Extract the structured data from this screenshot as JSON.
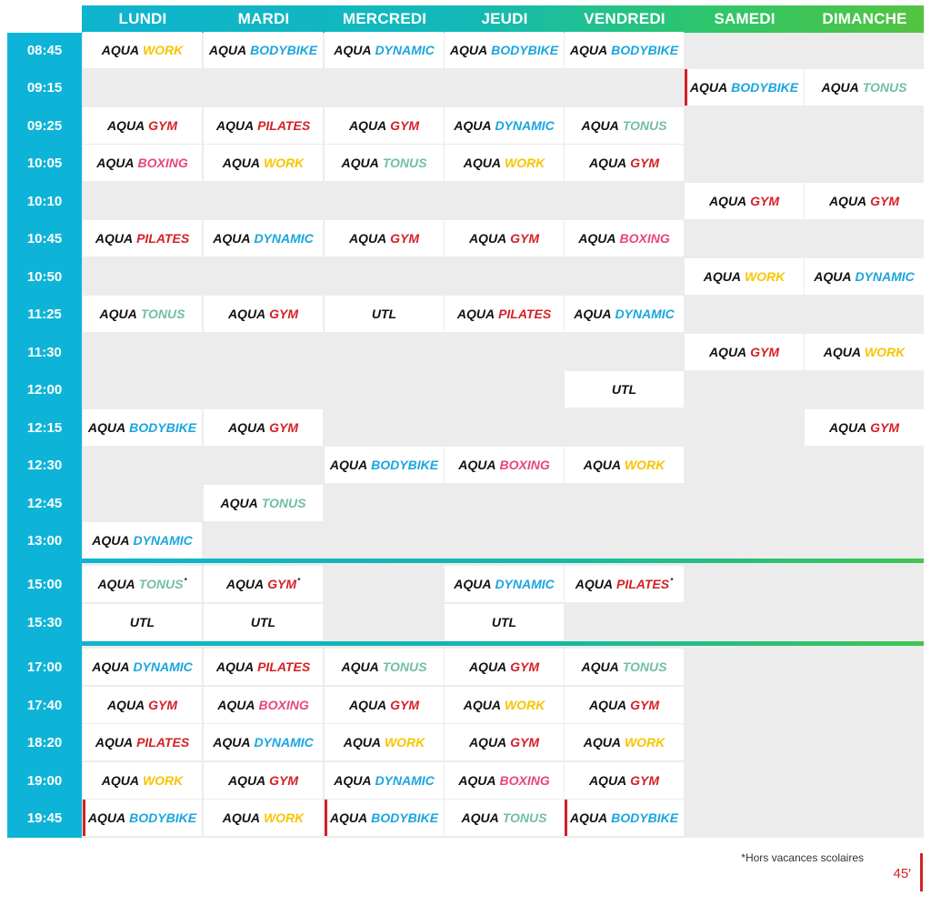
{
  "days": [
    "LUNDI",
    "MARDI",
    "MERCREDI",
    "JEUDI",
    "VENDREDI",
    "SAMEDI",
    "DIMANCHE"
  ],
  "course_prefix": "AQUA",
  "course_colors": {
    "WORK": "#f6c500",
    "BODYBIKE": "#1aa5df",
    "DYNAMIC": "#1aa5df",
    "GYM": "#d42027",
    "PILATES": "#d42027",
    "TONUS": "#72bda8",
    "BOXING": "#e8467a"
  },
  "sessions": [
    {
      "time": "08:45",
      "cells": [
        {
          "course": "WORK"
        },
        {
          "course": "BODYBIKE"
        },
        {
          "course": "DYNAMIC"
        },
        {
          "course": "BODYBIKE"
        },
        {
          "course": "BODYBIKE"
        },
        null,
        null
      ]
    },
    {
      "time": "09:15",
      "cells": [
        null,
        null,
        null,
        null,
        null,
        {
          "course": "BODYBIKE",
          "mark": true
        },
        {
          "course": "TONUS"
        }
      ]
    },
    {
      "time": "09:25",
      "cells": [
        {
          "course": "GYM"
        },
        {
          "course": "PILATES"
        },
        {
          "course": "GYM"
        },
        {
          "course": "DYNAMIC"
        },
        {
          "course": "TONUS"
        },
        null,
        null
      ]
    },
    {
      "time": "10:05",
      "cells": [
        {
          "course": "BOXING"
        },
        {
          "course": "WORK"
        },
        {
          "course": "TONUS"
        },
        {
          "course": "WORK"
        },
        {
          "course": "GYM"
        },
        null,
        null
      ]
    },
    {
      "time": "10:10",
      "cells": [
        null,
        null,
        null,
        null,
        null,
        {
          "course": "GYM"
        },
        {
          "course": "GYM"
        }
      ]
    },
    {
      "time": "10:45",
      "cells": [
        {
          "course": "PILATES"
        },
        {
          "course": "DYNAMIC"
        },
        {
          "course": "GYM"
        },
        {
          "course": "GYM"
        },
        {
          "course": "BOXING"
        },
        null,
        null
      ]
    },
    {
      "time": "10:50",
      "cells": [
        null,
        null,
        null,
        null,
        null,
        {
          "course": "WORK"
        },
        {
          "course": "DYNAMIC"
        }
      ]
    },
    {
      "time": "11:25",
      "cells": [
        {
          "course": "TONUS"
        },
        {
          "course": "GYM"
        },
        {
          "text": "UTL"
        },
        {
          "course": "PILATES"
        },
        {
          "course": "DYNAMIC"
        },
        null,
        null
      ]
    },
    {
      "time": "11:30",
      "cells": [
        null,
        null,
        null,
        null,
        null,
        {
          "course": "GYM"
        },
        {
          "course": "WORK"
        }
      ]
    },
    {
      "time": "12:00",
      "cells": [
        null,
        null,
        null,
        null,
        {
          "text": "UTL"
        },
        null,
        null
      ]
    },
    {
      "time": "12:15",
      "cells": [
        {
          "course": "BODYBIKE"
        },
        {
          "course": "GYM"
        },
        null,
        null,
        null,
        null,
        {
          "course": "GYM"
        }
      ]
    },
    {
      "time": "12:30",
      "cells": [
        null,
        null,
        {
          "course": "BODYBIKE"
        },
        {
          "course": "BOXING"
        },
        {
          "course": "WORK"
        },
        null,
        null
      ]
    },
    {
      "time": "12:45",
      "cells": [
        null,
        {
          "course": "TONUS"
        },
        null,
        null,
        null,
        null,
        null
      ]
    },
    {
      "time": "13:00",
      "cells": [
        {
          "course": "DYNAMIC"
        },
        null,
        null,
        null,
        null,
        null,
        null
      ]
    },
    {
      "time": "15:00",
      "cells": [
        {
          "course": "TONUS",
          "star": "*"
        },
        {
          "course": "GYM",
          "star": "*"
        },
        null,
        {
          "course": "DYNAMIC"
        },
        {
          "course": "PILATES",
          "star": "*"
        },
        null,
        null
      ]
    },
    {
      "time": "15:30",
      "cells": [
        {
          "text": "UTL"
        },
        {
          "text": "UTL"
        },
        null,
        {
          "text": "UTL"
        },
        null,
        null,
        null
      ]
    },
    {
      "time": "17:00",
      "cells": [
        {
          "course": "DYNAMIC"
        },
        {
          "course": "PILATES"
        },
        {
          "course": "TONUS"
        },
        {
          "course": "GYM"
        },
        {
          "course": "TONUS"
        },
        null,
        null
      ]
    },
    {
      "time": "17:40",
      "cells": [
        {
          "course": "GYM"
        },
        {
          "course": "BOXING"
        },
        {
          "course": "GYM"
        },
        {
          "course": "WORK"
        },
        {
          "course": "GYM"
        },
        null,
        null
      ]
    },
    {
      "time": "18:20",
      "cells": [
        {
          "course": "PILATES"
        },
        {
          "course": "DYNAMIC"
        },
        {
          "course": "WORK"
        },
        {
          "course": "GYM"
        },
        {
          "course": "WORK"
        },
        null,
        null
      ]
    },
    {
      "time": "19:00",
      "cells": [
        {
          "course": "WORK"
        },
        {
          "course": "GYM"
        },
        {
          "course": "DYNAMIC"
        },
        {
          "course": "BOXING"
        },
        {
          "course": "GYM"
        },
        null,
        null
      ]
    },
    {
      "time": "19:45",
      "cells": [
        {
          "course": "BODYBIKE",
          "mark": true
        },
        {
          "course": "WORK"
        },
        {
          "course": "BODYBIKE",
          "mark": true
        },
        {
          "course": "TONUS"
        },
        {
          "course": "BODYBIKE",
          "mark": true
        },
        null,
        null
      ]
    }
  ],
  "footnote": "*Hors vacances scolaires",
  "duration": "45′",
  "accent_red": "#d42027"
}
